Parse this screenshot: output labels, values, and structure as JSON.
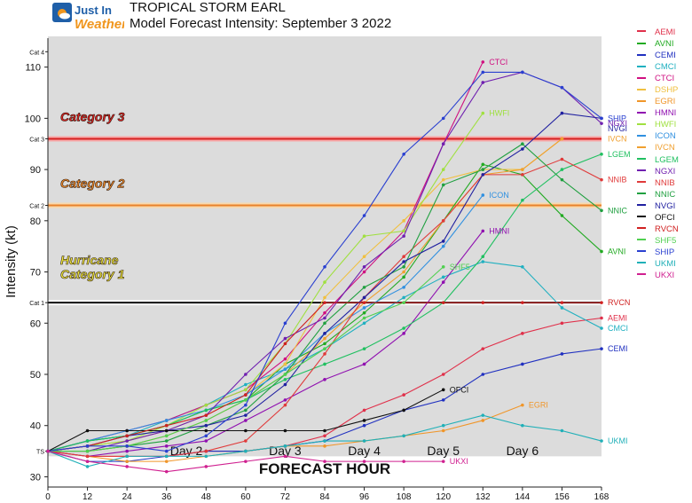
{
  "brand": {
    "logo_text_1": "Just In",
    "logo_text_2": "Weather",
    "colors": {
      "blue": "#1f5fa8",
      "orange": "#f0961e"
    }
  },
  "header": {
    "title": "TROPICAL STORM EARL",
    "subtitle": "Model Forecast Intensity: September 3 2022"
  },
  "chart_data": {
    "type": "line",
    "xlabel": "FORECAST HOUR",
    "ylabel": "Intensity (kt)",
    "x": [
      0,
      12,
      24,
      36,
      48,
      60,
      72,
      84,
      96,
      108,
      120,
      132,
      144,
      156,
      168
    ],
    "xlim": [
      0,
      168
    ],
    "ylim": [
      28,
      116
    ],
    "yticks": [
      30,
      40,
      50,
      60,
      70,
      80,
      90,
      100,
      110
    ],
    "background_range": [
      34,
      116
    ],
    "grid": false,
    "category_ticks": [
      {
        "label": "TS",
        "value": 35
      },
      {
        "label": "Cat 1",
        "value": 64
      },
      {
        "label": "Cat 2",
        "value": 83
      },
      {
        "label": "Cat 3",
        "value": 96
      },
      {
        "label": "Cat 4",
        "value": 113
      }
    ],
    "threshold_lines": [
      {
        "value": 64,
        "color": "#111111",
        "glow": "#ffffff"
      },
      {
        "value": 83,
        "color": "#e8822a",
        "glow": "#ffd7a0"
      },
      {
        "value": 96,
        "color": "#d42020",
        "glow": "#ff9a9a"
      }
    ],
    "category_labels": [
      {
        "lines": [
          "Category 3"
        ],
        "color": "#e02020",
        "value": 99.5
      },
      {
        "lines": [
          "Category 2"
        ],
        "color": "#f08a2a",
        "value": 86.5
      },
      {
        "lines": [
          "Hurricane",
          "Category 1"
        ],
        "color": "#f2ea3a",
        "value": 71.5
      }
    ],
    "day_labels": [
      {
        "label": "Day 2",
        "x": 42
      },
      {
        "label": "Day 3",
        "x": 72
      },
      {
        "label": "Day 4",
        "x": 96
      },
      {
        "label": "Day 5",
        "x": 120
      },
      {
        "label": "Day 6",
        "x": 144
      }
    ],
    "series": [
      {
        "name": "AEMI",
        "color": "#e0304a",
        "values": [
          35,
          34,
          34,
          34,
          35,
          35,
          36,
          38,
          43,
          46,
          50,
          55,
          58,
          60,
          61
        ]
      },
      {
        "name": "AVNI",
        "color": "#22aa22",
        "values": [
          35,
          37,
          38,
          40,
          43,
          45,
          52,
          56,
          62,
          69,
          80,
          91,
          89,
          81,
          74
        ]
      },
      {
        "name": "CEMI",
        "color": "#2030c0",
        "values": [
          35,
          33,
          33,
          34,
          35,
          35,
          36,
          37,
          40,
          43,
          45,
          50,
          52,
          54,
          55
        ]
      },
      {
        "name": "CMCI",
        "color": "#20b0c0",
        "values": [
          35,
          37,
          38,
          41,
          44,
          48,
          51,
          55,
          60,
          65,
          69,
          72,
          71,
          63,
          59
        ]
      },
      {
        "name": "CTCI",
        "color": "#d01080",
        "values": [
          35,
          37,
          39,
          41,
          44,
          47,
          53,
          62,
          70,
          78,
          95,
          111,
          null,
          null,
          null
        ]
      },
      {
        "name": "DSHP",
        "color": "#f0c040",
        "values": [
          35,
          36,
          37,
          39,
          42,
          46,
          52,
          65,
          73,
          80,
          88,
          90,
          90,
          96,
          null
        ]
      },
      {
        "name": "EGRI",
        "color": "#f0962a",
        "values": [
          35,
          34,
          33,
          33,
          34,
          35,
          36,
          36,
          37,
          38,
          39,
          41,
          44,
          null,
          null
        ]
      },
      {
        "name": "HMNI",
        "color": "#9010b0",
        "values": [
          35,
          34,
          35,
          36,
          37,
          41,
          45,
          49,
          52,
          58,
          68,
          78,
          null,
          null,
          null
        ]
      },
      {
        "name": "HWFI",
        "color": "#a0e040",
        "values": [
          35,
          36,
          37,
          40,
          44,
          47,
          56,
          68,
          77,
          78,
          90,
          101,
          null,
          null,
          null
        ]
      },
      {
        "name": "ICON",
        "color": "#3090e0",
        "values": [
          35,
          37,
          39,
          41,
          43,
          46,
          51,
          58,
          63,
          67,
          75,
          85,
          null,
          null,
          null
        ]
      },
      {
        "name": "IVCN",
        "color": "#f0a030",
        "values": [
          35,
          35,
          36,
          38,
          41,
          45,
          50,
          57,
          64,
          70,
          80,
          89,
          90,
          96,
          null
        ]
      },
      {
        "name": "LGEM",
        "color": "#20c060",
        "values": [
          35,
          37,
          38,
          40,
          43,
          45,
          49,
          52,
          55,
          59,
          64,
          73,
          84,
          90,
          93
        ]
      },
      {
        "name": "NGXI",
        "color": "#7020b0",
        "values": [
          35,
          35,
          37,
          39,
          42,
          50,
          57,
          61,
          71,
          77,
          95,
          107,
          109,
          106,
          99
        ]
      },
      {
        "name": "NNIB",
        "color": "#e03a3a",
        "values": [
          35,
          34,
          34,
          34,
          35,
          37,
          44,
          54,
          65,
          73,
          80,
          89,
          89,
          92,
          88
        ]
      },
      {
        "name": "NNIC",
        "color": "#20a040",
        "values": [
          35,
          35,
          36,
          37,
          40,
          43,
          50,
          60,
          67,
          71,
          87,
          90,
          95,
          88,
          82
        ]
      },
      {
        "name": "NVGI",
        "color": "#2020a0",
        "values": [
          35,
          36,
          38,
          39,
          40,
          42,
          48,
          58,
          65,
          72,
          76,
          89,
          94,
          101,
          100
        ]
      },
      {
        "name": "OFCI",
        "color": "#111111",
        "values": [
          35,
          39,
          39,
          39,
          39,
          39,
          39,
          39,
          41,
          43,
          47,
          null,
          null,
          null,
          null
        ]
      },
      {
        "name": "RVCN",
        "color": "#d02020",
        "values": [
          35,
          36,
          38,
          40,
          42,
          46,
          56,
          64,
          64,
          64,
          64,
          64,
          64,
          64,
          64
        ]
      },
      {
        "name": "SHF5",
        "color": "#50d050",
        "values": [
          35,
          35,
          36,
          38,
          41,
          45,
          50,
          55,
          61,
          64,
          71,
          null,
          null,
          null,
          null
        ]
      },
      {
        "name": "SHIP",
        "color": "#2a40d0",
        "values": [
          35,
          36,
          36,
          35,
          38,
          44,
          60,
          71,
          81,
          93,
          100,
          109,
          109,
          106,
          100
        ]
      },
      {
        "name": "UKMI",
        "color": "#20b0b8",
        "values": [
          35,
          32,
          34,
          34,
          34,
          35,
          36,
          37,
          37,
          38,
          40,
          42,
          40,
          39,
          37
        ]
      },
      {
        "name": "UKXI",
        "color": "#d02090",
        "values": [
          35,
          33,
          32,
          31,
          32,
          33,
          34,
          33,
          33,
          33,
          33,
          null,
          null,
          null,
          null
        ]
      }
    ],
    "end_labels": [
      {
        "series": "CTCI",
        "text": "CTCI",
        "x": 132,
        "y": 111
      },
      {
        "series": "HWFI",
        "text": "HWFI",
        "x": 132,
        "y": 101
      },
      {
        "series": "ICON",
        "text": "ICON",
        "x": 132,
        "y": 85
      },
      {
        "series": "HMNI",
        "text": "HMNI",
        "x": 132,
        "y": 78
      },
      {
        "series": "SHF5",
        "text": "SHF5",
        "x": 120,
        "y": 71
      },
      {
        "series": "OFCI",
        "text": "OFCI",
        "x": 120,
        "y": 47
      },
      {
        "series": "EGRI",
        "text": "EGRI",
        "x": 144,
        "y": 44
      },
      {
        "series": "UKXI",
        "text": "UKXI",
        "x": 120,
        "y": 33
      },
      {
        "series": "SHIP",
        "text": "SHIP",
        "x": 168,
        "y": 100
      },
      {
        "series": "NGXI",
        "text": "NGXI",
        "x": 168,
        "y": 99
      },
      {
        "series": "NVGI",
        "text": "NVGI",
        "x": 168,
        "y": 98
      },
      {
        "series": "IVCN",
        "text": "IVCN",
        "x": 168,
        "y": 96
      },
      {
        "series": "LGEM",
        "text": "LGEM",
        "x": 168,
        "y": 93
      },
      {
        "series": "NNIB",
        "text": "NNIB",
        "x": 168,
        "y": 88
      },
      {
        "series": "NNIC",
        "text": "NNIC",
        "x": 168,
        "y": 82
      },
      {
        "series": "AVNI",
        "text": "AVNI",
        "x": 168,
        "y": 74
      },
      {
        "series": "RVCN",
        "text": "RVCN",
        "x": 168,
        "y": 64
      },
      {
        "series": "AEMI",
        "text": "AEMI",
        "x": 168,
        "y": 61
      },
      {
        "series": "CMCI",
        "text": "CMCI",
        "x": 168,
        "y": 59
      },
      {
        "series": "CEMI",
        "text": "CEMI",
        "x": 168,
        "y": 55
      },
      {
        "series": "UKMI",
        "text": "UKMI",
        "x": 168,
        "y": 37
      }
    ],
    "legend": [
      {
        "name": "AEMI",
        "color": "#e0304a"
      },
      {
        "name": "AVNI",
        "color": "#22aa22"
      },
      {
        "name": "CEMI",
        "color": "#2030c0"
      },
      {
        "name": "CMCI",
        "color": "#20b0c0"
      },
      {
        "name": "CTCI",
        "color": "#d01080"
      },
      {
        "name": "DSHP",
        "color": "#f0c040"
      },
      {
        "name": "EGRI",
        "color": "#f0962a"
      },
      {
        "name": "HMNI",
        "color": "#9010b0"
      },
      {
        "name": "HWFI",
        "color": "#a0e040"
      },
      {
        "name": "ICON",
        "color": "#3090e0"
      },
      {
        "name": "IVCN",
        "color": "#f0a030"
      },
      {
        "name": "LGEM",
        "color": "#20c060"
      },
      {
        "name": "NGXI",
        "color": "#7020b0"
      },
      {
        "name": "NNIB",
        "color": "#e03a3a"
      },
      {
        "name": "NNIC",
        "color": "#20a040"
      },
      {
        "name": "NVGI",
        "color": "#2020a0"
      },
      {
        "name": "OFCI",
        "color": "#111111"
      },
      {
        "name": "RVCN",
        "color": "#d02020"
      },
      {
        "name": "SHF5",
        "color": "#50d050"
      },
      {
        "name": "SHIP",
        "color": "#2a40d0"
      },
      {
        "name": "UKMI",
        "color": "#20b0b8"
      },
      {
        "name": "UKXI",
        "color": "#d02090"
      }
    ],
    "legend_position": "right"
  }
}
